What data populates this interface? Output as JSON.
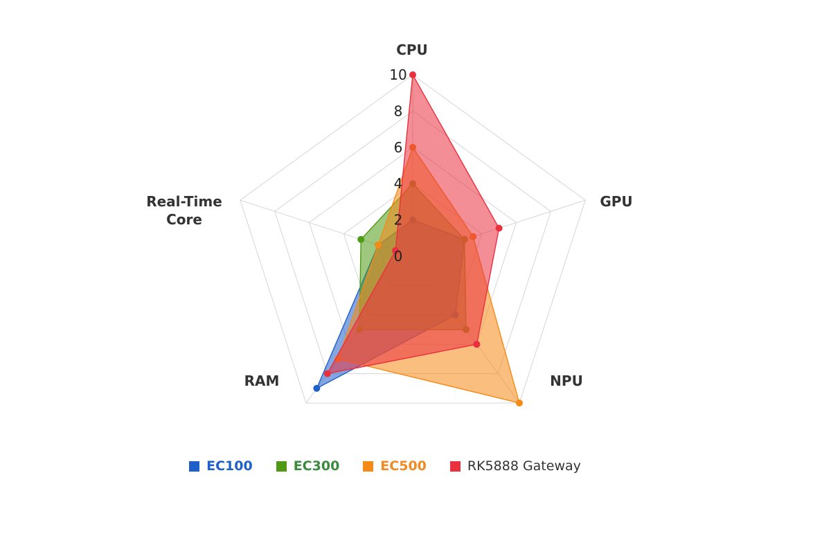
{
  "chart_data": {
    "type": "radar",
    "axes": [
      "CPU",
      "GPU",
      "NPU",
      "RAM",
      "Real-Time Core"
    ],
    "rlim": [
      0,
      10
    ],
    "ticks": [
      "0",
      "2",
      "4",
      "6",
      "8",
      "10"
    ],
    "grid": true,
    "legend_position": "bottom",
    "series": [
      {
        "name": "EC100",
        "values": [
          2,
          3,
          4,
          9,
          2
        ],
        "color": "#1f5fc9",
        "label_color": "#1f5fc9"
      },
      {
        "name": "EC300",
        "values": [
          4,
          3,
          5,
          5,
          3
        ],
        "color": "#4f9a14",
        "label_color": "#3a8a3e"
      },
      {
        "name": "EC500",
        "values": [
          6,
          3.5,
          10,
          7,
          2
        ],
        "color": "#f58a16",
        "label_color": "#f08b23"
      },
      {
        "name": "RK5888 Gateway",
        "values": [
          10,
          5,
          6,
          8,
          1
        ],
        "color": "#ea2f3f",
        "label_color": "#333333"
      }
    ]
  }
}
